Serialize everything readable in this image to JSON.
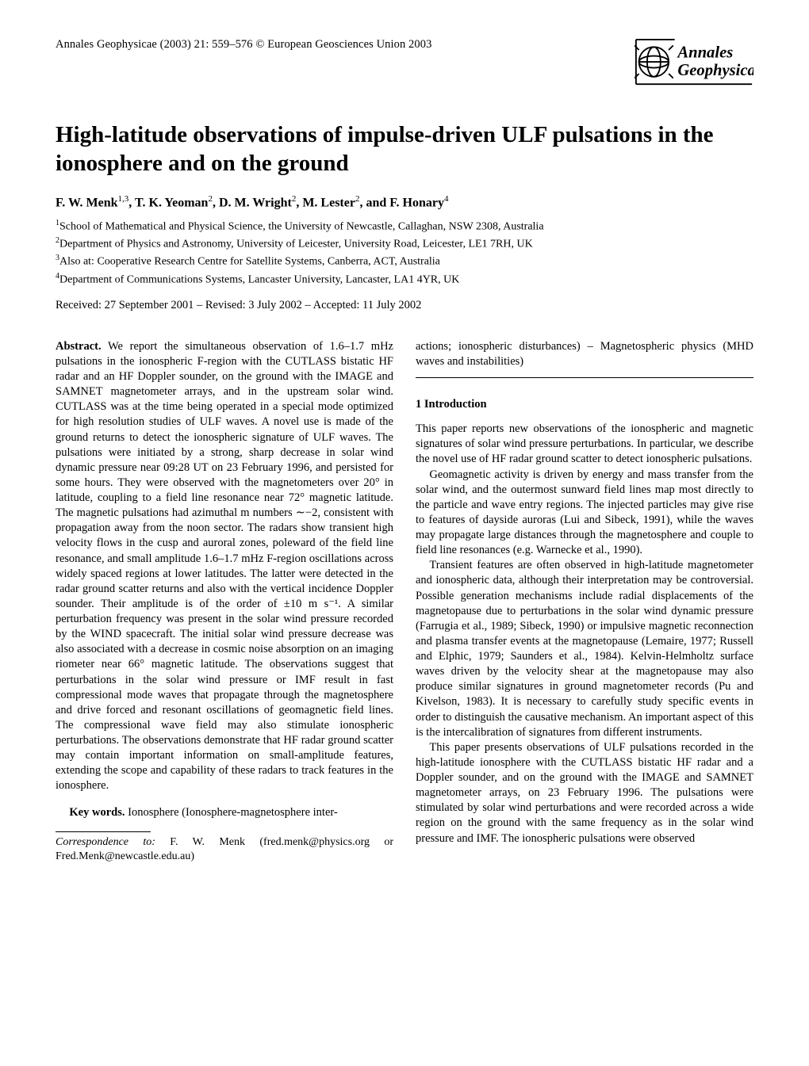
{
  "header": {
    "journal_line": "Annales Geophysicae (2003) 21: 559–576  ©  European Geosciences Union 2003",
    "logo_top": "Annales",
    "logo_bottom": "Geophysicae"
  },
  "title": "High-latitude observations of impulse-driven ULF pulsations in the ionosphere and on the ground",
  "authors_html": "F. W. Menk<sup>1,3</sup>, T. K. Yeoman<sup>2</sup>, D. M. Wright<sup>2</sup>, M. Lester<sup>2</sup>, and F. Honary<sup>4</sup>",
  "affiliations": [
    {
      "num": "1",
      "text": "School of Mathematical and Physical Science, the University of Newcastle, Callaghan, NSW 2308, Australia"
    },
    {
      "num": "2",
      "text": "Department of Physics and Astronomy, University of Leicester, University Road, Leicester, LE1 7RH, UK"
    },
    {
      "num": "3",
      "text": "Also at: Cooperative Research Centre for Satellite Systems, Canberra, ACT, Australia"
    },
    {
      "num": "4",
      "text": "Department of Communications Systems, Lancaster University, Lancaster, LA1 4YR, UK"
    }
  ],
  "dates": "Received: 27 September 2001 – Revised: 3 July 2002 – Accepted: 11 July 2002",
  "abstract": {
    "label": "Abstract.",
    "text": "We report the simultaneous observation of 1.6–1.7 mHz pulsations in the ionospheric F-region with the CUTLASS bistatic HF radar and an HF Doppler sounder, on the ground with the IMAGE and SAMNET magnetometer arrays, and in the upstream solar wind. CUTLASS was at the time being operated in a special mode optimized for high resolution studies of ULF waves. A novel use is made of the ground returns to detect the ionospheric signature of ULF waves. The pulsations were initiated by a strong, sharp decrease in solar wind dynamic pressure near 09:28 UT on 23 February 1996, and persisted for some hours. They were observed with the magnetometers over 20° in latitude, coupling to a field line resonance near 72° magnetic latitude. The magnetic pulsations had azimuthal m numbers ∼−2, consistent with propagation away from the noon sector. The radars show transient high velocity flows in the cusp and auroral zones, poleward of the field line resonance, and small amplitude 1.6–1.7 mHz F-region oscillations across widely spaced regions at lower latitudes. The latter were detected in the radar ground scatter returns and also with the vertical incidence Doppler sounder. Their amplitude is of the order of ±10 m s⁻¹. A similar perturbation frequency was present in the solar wind pressure recorded by the WIND spacecraft. The initial solar wind pressure decrease was also associated with a decrease in cosmic noise absorption on an imaging riometer near 66° magnetic latitude. The observations suggest that perturbations in the solar wind pressure or IMF result in fast compressional mode waves that propagate through the magnetosphere and drive forced and resonant oscillations of geomagnetic field lines. The compressional wave field may also stimulate ionospheric perturbations. The observations demonstrate that HF radar ground scatter may contain important information on small-amplitude features, extending the scope and capability of these radars to track features in the ionosphere."
  },
  "keywords": {
    "label": "Key words.",
    "left_text": "Ionosphere (Ionosphere-magnetosphere inter-",
    "right_text": "actions; ionospheric disturbances) – Magnetospheric physics (MHD waves and instabilities)"
  },
  "correspondence": {
    "label": "Correspondence to:",
    "text": " F. W. Menk (fred.menk@physics.org or Fred.Menk@newcastle.edu.au)"
  },
  "intro": {
    "heading": "1   Introduction",
    "paras": [
      "This paper reports new observations of the ionospheric and magnetic signatures of solar wind pressure perturbations. In particular, we describe the novel use of HF radar ground scatter to detect ionospheric pulsations.",
      "Geomagnetic activity is driven by energy and mass transfer from the solar wind, and the outermost sunward field lines map most directly to the particle and wave entry regions. The injected particles may give rise to features of dayside auroras (Lui and Sibeck, 1991), while the waves may propagate large distances through the magnetosphere and couple to field line resonances (e.g. Warnecke et al., 1990).",
      "Transient features are often observed in high-latitude magnetometer and ionospheric data, although their interpretation may be controversial. Possible generation mechanisms include radial displacements of the magnetopause due to perturbations in the solar wind dynamic pressure (Farrugia et al., 1989; Sibeck, 1990) or impulsive magnetic reconnection and plasma transfer events at the magnetopause (Lemaire, 1977; Russell and Elphic, 1979; Saunders et al., 1984). Kelvin-Helmholtz surface waves driven by the velocity shear at the magnetopause may also produce similar signatures in ground magnetometer records (Pu and Kivelson, 1983). It is necessary to carefully study specific events in order to distinguish the causative mechanism. An important aspect of this is the intercalibration of signatures from different instruments.",
      "This paper presents observations of ULF pulsations recorded in the high-latitude ionosphere with the CUTLASS bistatic HF radar and a Doppler sounder, and on the ground with the IMAGE and SAMNET magnetometer arrays, on 23 February 1996. The pulsations were stimulated by solar wind perturbations and were recorded across a wide region on the ground with the same frequency as in the solar wind pressure and IMF. The ionospheric pulsations were observed"
    ]
  },
  "colors": {
    "text": "#000000",
    "background": "#ffffff",
    "logo_outline": "#000000",
    "logo_globe_fill": "#ffffff"
  }
}
